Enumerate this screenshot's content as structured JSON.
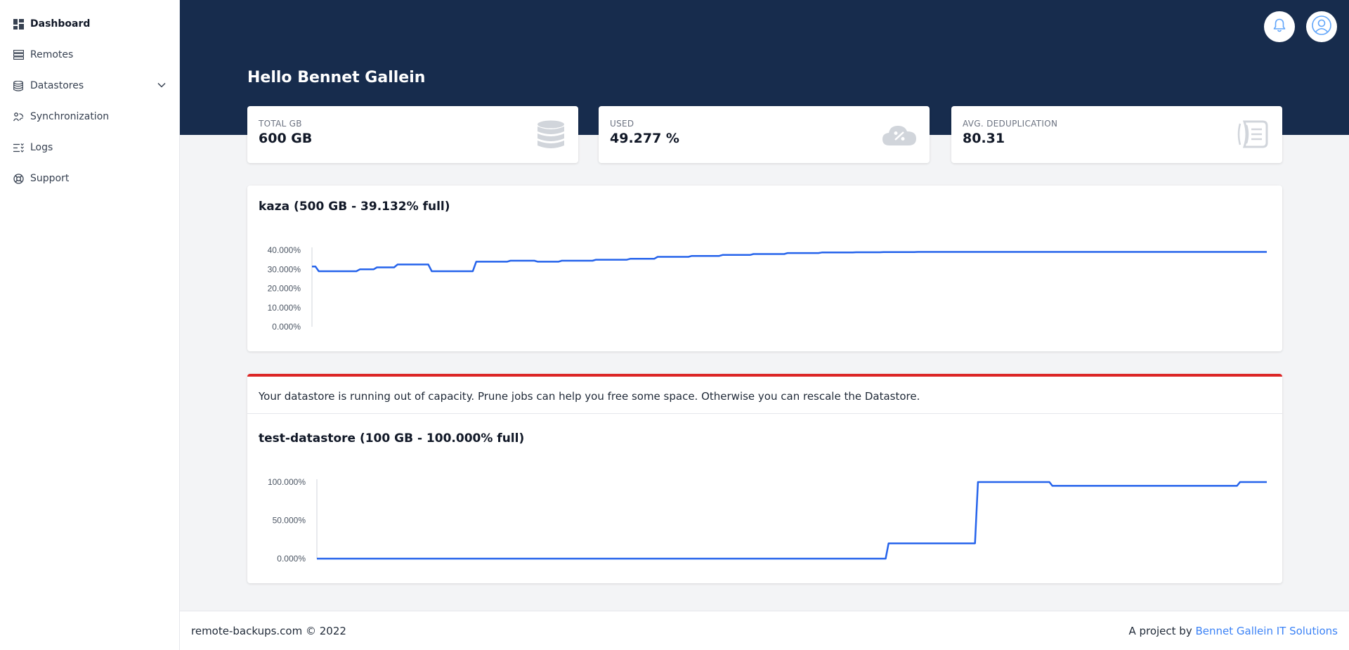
{
  "sidebar": {
    "items": [
      {
        "label": "Dashboard",
        "icon": "dashboard-icon"
      },
      {
        "label": "Remotes",
        "icon": "server-stack-icon"
      },
      {
        "label": "Datastores",
        "icon": "database-icon"
      },
      {
        "label": "Synchronization",
        "icon": "sync-icon"
      },
      {
        "label": "Logs",
        "icon": "list-icon"
      },
      {
        "label": "Support",
        "icon": "lifebuoy-icon"
      }
    ]
  },
  "header": {
    "greeting": "Hello Bennet Gallein",
    "icons": [
      "bell-icon",
      "user-icon"
    ]
  },
  "stats": [
    {
      "label": "TOTAL GB",
      "value": "600 GB",
      "icon": "database-icon"
    },
    {
      "label": "USED",
      "value": "49.277 %",
      "icon": "cloud-percent-icon"
    },
    {
      "label": "AVG. DEDUPLICATION",
      "value": "80.31",
      "icon": "receipt-icon"
    }
  ],
  "alert": {
    "message": "Your datastore is running out of capacity. Prune jobs can help you free some space. Otherwise you can rescale the Datastore."
  },
  "footer": {
    "copyright": "remote-backups.com © 2022",
    "prefix": "A project by",
    "link": "Bennet Gallein IT Solutions"
  },
  "colors": {
    "header": "#172c4d",
    "line": "#2563eb",
    "alert": "#dc2626",
    "link": "#3b82f6"
  },
  "chart_data": [
    {
      "type": "line",
      "title": "kaza (500 GB - 39.132% full)",
      "ylim": [
        0,
        40
      ],
      "yticks": [
        "40.000%",
        "30.000%",
        "20.000%",
        "10.000%",
        "0.000%"
      ],
      "series": [
        {
          "values": [
            31.5,
            31.5,
            29,
            29,
            29,
            29,
            29,
            29,
            29,
            29,
            29,
            29,
            29,
            29,
            30,
            30,
            30,
            30,
            30,
            31,
            31,
            31,
            31,
            31,
            31,
            32.5,
            32.5,
            32.5,
            32.5,
            32.5,
            32.5,
            32.5,
            32.5,
            32.5,
            32.5,
            29,
            29,
            29,
            29,
            29,
            29,
            29,
            29,
            29,
            29,
            29,
            29,
            29,
            34,
            34,
            34,
            34,
            34,
            34,
            34,
            34,
            34,
            34,
            34.5,
            34.5,
            34.5,
            34.5,
            34.5,
            34.5,
            34.5,
            34.5,
            34,
            34,
            34,
            34,
            34,
            34,
            34,
            34.5,
            34.5,
            34.5,
            34.5,
            34.5,
            34.5,
            34.5,
            34.5,
            34.5,
            34.5,
            35,
            35,
            35,
            35,
            35,
            35,
            35,
            35,
            35,
            35,
            35.5,
            35.5,
            35.5,
            35.5,
            35.5,
            35.5,
            35.5,
            35.5,
            36.5,
            36.5,
            36.5,
            36.5,
            36.5,
            36.5,
            36.5,
            36.5,
            36.5,
            36.5,
            37,
            37,
            37,
            37,
            37,
            37,
            37,
            37,
            37,
            37.5,
            37.5,
            37.5,
            37.5,
            37.5,
            37.5,
            37.5,
            37.5,
            37.5,
            38,
            38,
            38,
            38,
            38,
            38,
            38,
            38,
            38,
            38,
            38.5,
            38.5,
            38.5,
            38.5,
            38.5,
            38.5,
            38.5,
            38.5,
            38.5,
            38.5,
            38.8,
            38.8,
            38.8,
            38.8,
            38.8,
            38.8,
            38.8,
            38.8,
            38.8,
            38.8,
            38.9,
            38.9,
            38.9,
            38.9,
            38.9,
            38.9,
            38.9,
            38.9,
            39,
            39,
            39,
            39,
            39,
            39,
            39,
            39,
            39,
            39,
            39.1,
            39.1,
            39.1,
            39.1,
            39.1,
            39.1,
            39.1,
            39.1,
            39.1,
            39.1,
            39.1,
            39.1,
            39.1,
            39.1,
            39.1,
            39.1,
            39.1,
            39.1,
            39.1,
            39.1,
            39.1,
            39.1,
            39.1,
            39.1,
            39.1,
            39.1,
            39.1,
            39.1,
            39.1,
            39.1,
            39.1,
            39.1,
            39.1,
            39.1,
            39.1,
            39.1,
            39.1,
            39.1,
            39.1,
            39.1,
            39.1,
            39.1,
            39.1,
            39.1,
            39.1,
            39.1,
            39.1,
            39.1,
            39.1,
            39.1,
            39.1,
            39.1,
            39.1,
            39.1,
            39.1,
            39.1,
            39.1,
            39.1,
            39.1,
            39.1,
            39.1,
            39.1,
            39.1,
            39.1,
            39.1,
            39.1,
            39.1,
            39.1,
            39.1,
            39.1,
            39.1,
            39.1,
            39.1,
            39.1,
            39.1,
            39.1,
            39.1,
            39.1,
            39.1,
            39.1,
            39.1,
            39.1,
            39.1,
            39.1,
            39.1,
            39.1,
            39.1,
            39.1,
            39.1,
            39.1,
            39.1,
            39.1,
            39.1,
            39.1,
            39.1,
            39.1,
            39.1,
            39.1,
            39.1,
            39.1,
            39.1,
            39.1,
            39.1
          ]
        }
      ]
    },
    {
      "type": "line",
      "title": "test-datastore (100 GB - 100.000% full)",
      "ylim": [
        0,
        100
      ],
      "yticks": [
        "100.000%",
        "50.000%",
        "0.000%"
      ],
      "series": [
        {
          "values": [
            0,
            0,
            0,
            0,
            0,
            0,
            0,
            0,
            0,
            0,
            0,
            0,
            0,
            0,
            0,
            0,
            0,
            0,
            0,
            0,
            0,
            0,
            0,
            0,
            0,
            0,
            0,
            0,
            0,
            0,
            0,
            0,
            0,
            0,
            0,
            0,
            0,
            0,
            0,
            0,
            0,
            0,
            0,
            0,
            0,
            0,
            0,
            0,
            0,
            0,
            0,
            0,
            0,
            0,
            0,
            0,
            0,
            0,
            0,
            0,
            0,
            0,
            0,
            0,
            0,
            0,
            0,
            0,
            0,
            0,
            0,
            0,
            0,
            0,
            0,
            0,
            0,
            0,
            0,
            0,
            0,
            0,
            0,
            0,
            0,
            0,
            0,
            0,
            0,
            0,
            0,
            0,
            0,
            0,
            0,
            0,
            0,
            0,
            0,
            0,
            0,
            0,
            0,
            0,
            0,
            0,
            0,
            0,
            0,
            0,
            0,
            0,
            0,
            0,
            0,
            0,
            0,
            0,
            0,
            0,
            0,
            0,
            0,
            0,
            0,
            0,
            0,
            0,
            0,
            0,
            0,
            0,
            0,
            0,
            0,
            0,
            0,
            0,
            0,
            0,
            0,
            0,
            0,
            0,
            0,
            0,
            0,
            0,
            0,
            0,
            0,
            0,
            0,
            0,
            0,
            0,
            0,
            0,
            0,
            0,
            0,
            0,
            0,
            0,
            0,
            0,
            0,
            0,
            0,
            0,
            0,
            0,
            0,
            0,
            0,
            0,
            0,
            0,
            0,
            0,
            0,
            0,
            0,
            0,
            0,
            0,
            0,
            0,
            0,
            0,
            0,
            0,
            20,
            20,
            20,
            20,
            20,
            20,
            20,
            20,
            20,
            20,
            20,
            20,
            20,
            20,
            20,
            20,
            20,
            20,
            20,
            20,
            20,
            20,
            20,
            20,
            20,
            20,
            20,
            20,
            20,
            20,
            100,
            100,
            100,
            100,
            100,
            100,
            100,
            100,
            100,
            100,
            100,
            100,
            100,
            100,
            100,
            100,
            100,
            100,
            100,
            100,
            100,
            100,
            100,
            100,
            100,
            95,
            95,
            95,
            95,
            95,
            95,
            95,
            95,
            95,
            95,
            95,
            95,
            95,
            95,
            95,
            95,
            95,
            95,
            95,
            95,
            95,
            95,
            95,
            95,
            95,
            95,
            95,
            95,
            95,
            95,
            95,
            95,
            95,
            95,
            95,
            95,
            95,
            95,
            95,
            95,
            95,
            95,
            95,
            95,
            95,
            95,
            95,
            95,
            95,
            95,
            95,
            95,
            95,
            95,
            95,
            95,
            95,
            95,
            95,
            95,
            95,
            95,
            95,
            100,
            100,
            100,
            100,
            100,
            100,
            100,
            100,
            100,
            100
          ]
        }
      ]
    }
  ]
}
